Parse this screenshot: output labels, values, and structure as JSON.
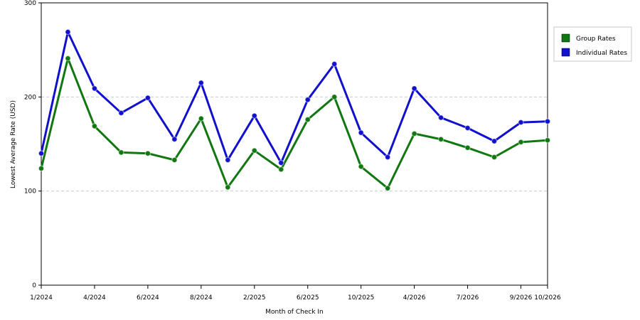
{
  "chart_data": {
    "type": "line",
    "xlabel": "Month of Check In",
    "ylabel": "Lowest Average Rate (USD)",
    "ylim": [
      0,
      300
    ],
    "y_ticks": [
      0,
      100,
      200,
      300
    ],
    "grid": "horizontal dashed at y ticks",
    "legend_placement": "right",
    "x_tick_labels": [
      "1/2024",
      "4/2024",
      "6/2024",
      "8/2024",
      "2/2025",
      "6/2025",
      "10/2025",
      "4/2026",
      "7/2026",
      "9/2026",
      "10/2026"
    ],
    "x_tick_indices": [
      0,
      2,
      4,
      6,
      8,
      10,
      12,
      14,
      16,
      18,
      19
    ],
    "series": [
      {
        "name": "Group Rates",
        "color": "#117711",
        "values": [
          124,
          241,
          169,
          141,
          140,
          133,
          177,
          104,
          143,
          123,
          176,
          200,
          126,
          103,
          161,
          155,
          146,
          136,
          152,
          154
        ]
      },
      {
        "name": "Individual Rates",
        "color": "#1111cc",
        "values": [
          140,
          269,
          209,
          183,
          199,
          155,
          215,
          133,
          180,
          130,
          197,
          235,
          162,
          136,
          209,
          178,
          167,
          153,
          173,
          174
        ]
      }
    ]
  }
}
